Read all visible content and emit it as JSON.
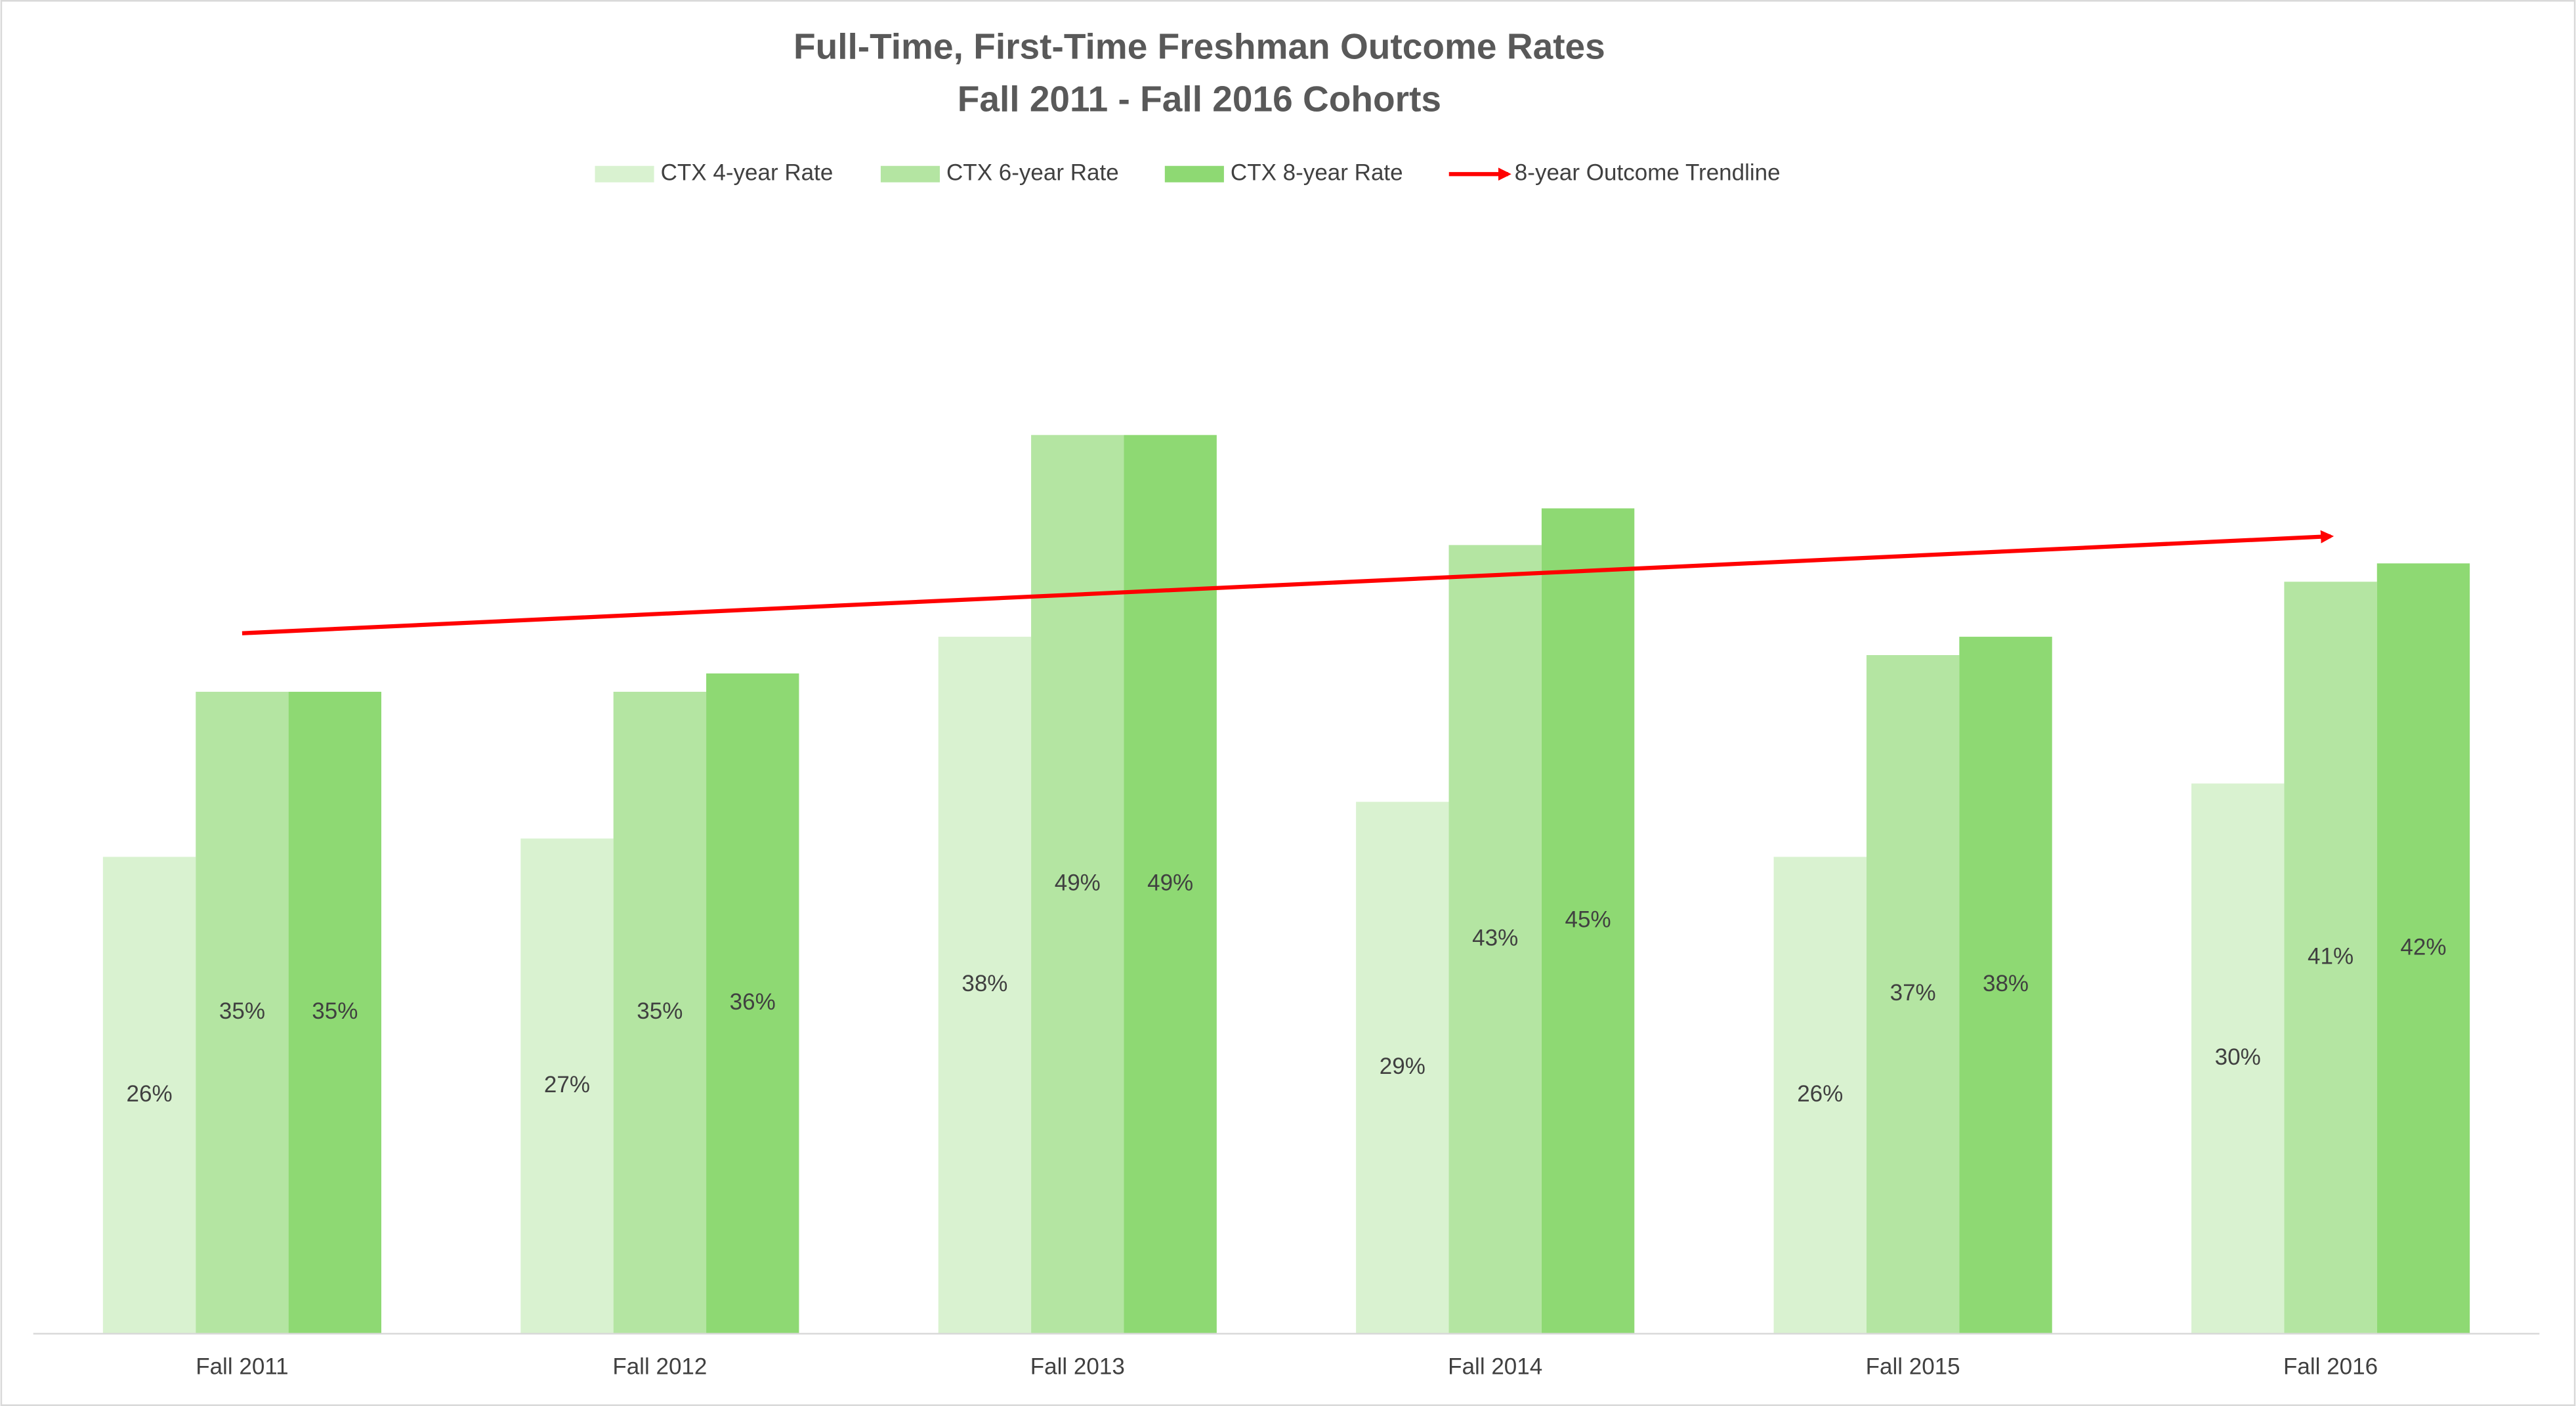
{
  "chart_data": {
    "type": "bar",
    "title": "Full-Time, First-Time Freshman Outcome Rates",
    "subtitle": "Fall 2011 - Fall 2016 Cohorts",
    "categories": [
      "Fall 2011",
      "Fall 2012",
      "Fall 2013",
      "Fall 2014",
      "Fall 2015",
      "Fall 2016"
    ],
    "series": [
      {
        "name": "CTX 4-year Rate",
        "color": "#d9f2d0",
        "values": [
          26,
          27,
          38,
          29,
          26,
          30
        ],
        "value_labels": [
          "26%",
          "27%",
          "38%",
          "29%",
          "26%",
          "30%"
        ]
      },
      {
        "name": "CTX 6-year Rate",
        "color": "#b4e5a2",
        "values": [
          35,
          35,
          49,
          43,
          37,
          41
        ],
        "value_labels": [
          "35%",
          "35%",
          "49%",
          "43%",
          "37%",
          "41%"
        ]
      },
      {
        "name": "CTX 8-year Rate",
        "color": "#8ed973",
        "values": [
          35,
          36,
          49,
          45,
          38,
          42
        ],
        "value_labels": [
          "35%",
          "36%",
          "49%",
          "45%",
          "38%",
          "42%"
        ]
      }
    ],
    "trendline": {
      "name": "8-year Outcome Trendline",
      "color": "#ff0000"
    },
    "ylim": [
      0,
      60
    ]
  }
}
